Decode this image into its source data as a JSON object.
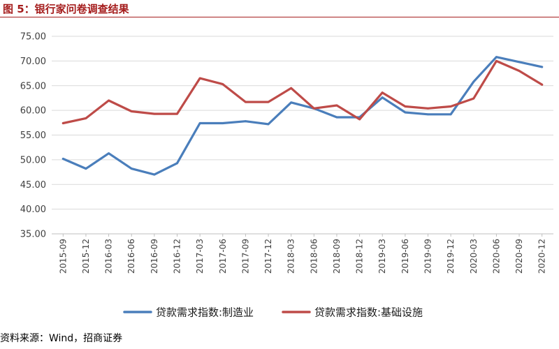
{
  "header": {
    "title": "图 5：银行家问卷调查结果"
  },
  "footer": {
    "source": "资料来源：Wind，招商证券"
  },
  "colors": {
    "accent": "#a51d1d",
    "series_blue": "#4a7ebb",
    "series_red": "#be4b48",
    "grid": "#d9d9d9"
  },
  "chart_data": {
    "type": "line",
    "title": "",
    "xlabel": "",
    "ylabel": "",
    "ylim": [
      35,
      75
    ],
    "yticks": [
      "35.00",
      "40.00",
      "45.00",
      "50.00",
      "55.00",
      "60.00",
      "65.00",
      "70.00",
      "75.00"
    ],
    "grid": true,
    "legend_position": "bottom",
    "categories": [
      "2015-09",
      "2015-12",
      "2016-03",
      "2016-06",
      "2016-09",
      "2016-12",
      "2017-03",
      "2017-06",
      "2017-09",
      "2017-12",
      "2018-03",
      "2018-06",
      "2018-09",
      "2018-12",
      "2019-03",
      "2019-06",
      "2019-09",
      "2019-12",
      "2020-03",
      "2020-06",
      "2020-09",
      "2020-12"
    ],
    "series": [
      {
        "name": "贷款需求指数:制造业",
        "color": "#4a7ebb",
        "values": [
          50.2,
          48.2,
          51.3,
          48.2,
          47.0,
          49.3,
          57.4,
          57.4,
          57.8,
          57.2,
          61.6,
          60.4,
          58.6,
          58.6,
          62.6,
          59.6,
          59.2,
          59.2,
          65.8,
          70.8,
          69.8,
          68.8
        ]
      },
      {
        "name": "贷款需求指数:基础设施",
        "color": "#be4b48",
        "values": [
          57.4,
          58.4,
          62.0,
          59.8,
          59.3,
          59.3,
          66.5,
          65.3,
          61.7,
          61.7,
          64.5,
          60.4,
          61.0,
          58.2,
          63.6,
          60.8,
          60.4,
          60.8,
          62.4,
          70.0,
          68.0,
          65.2
        ]
      }
    ]
  }
}
